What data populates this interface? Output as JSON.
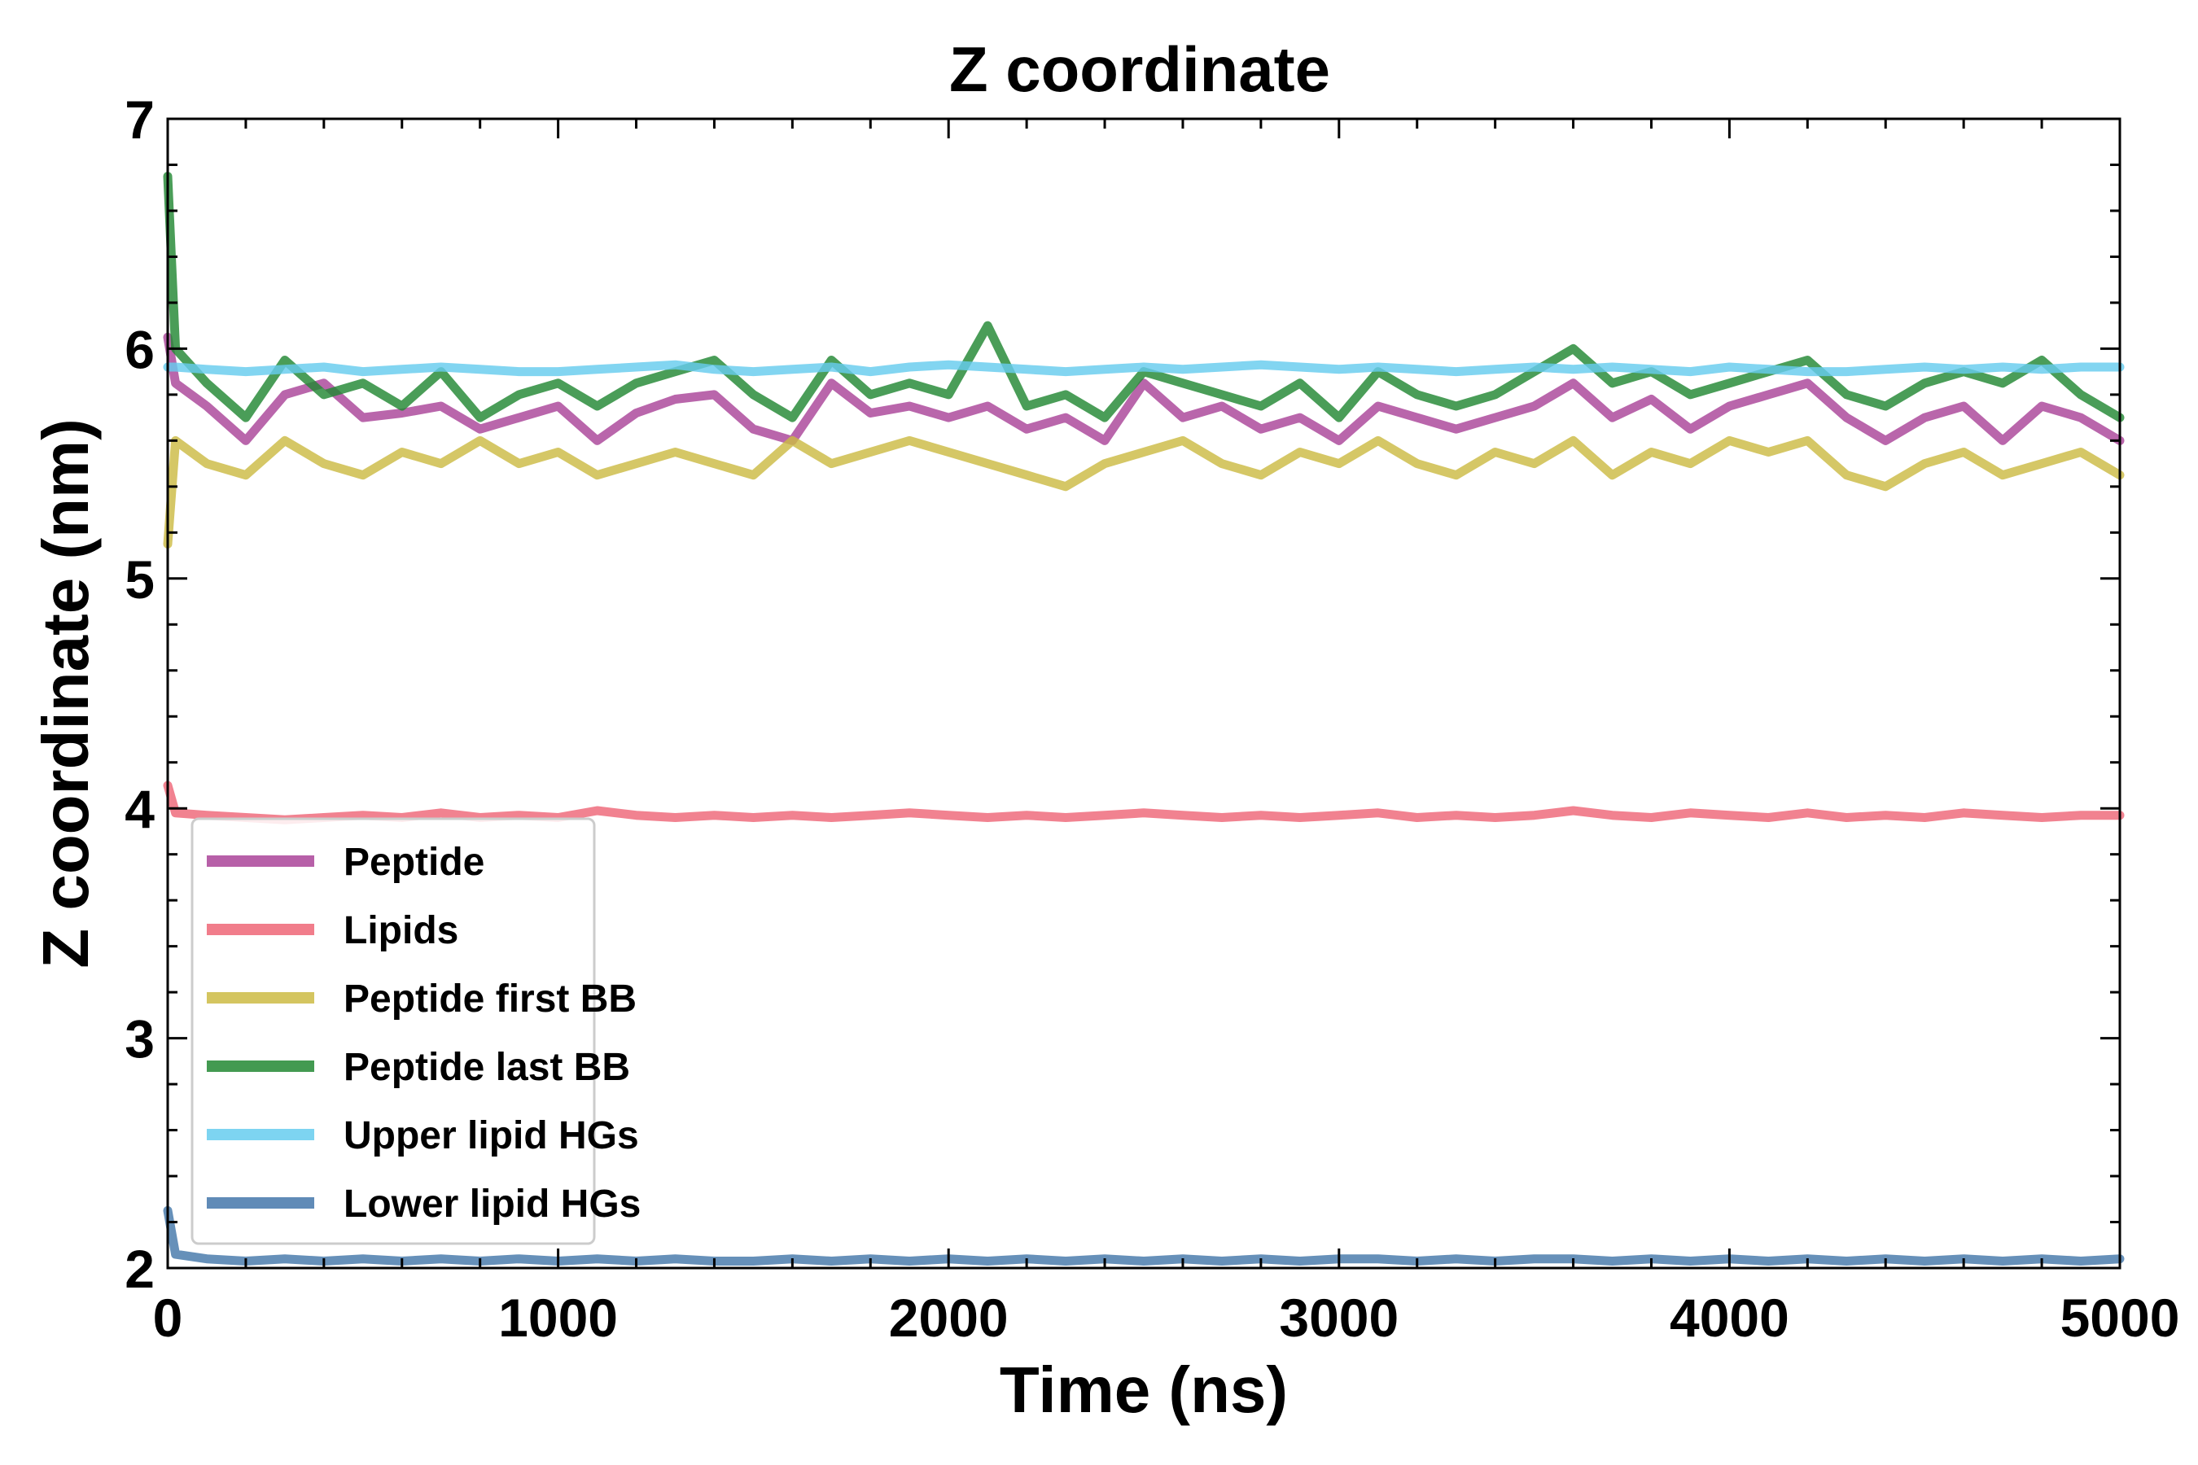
{
  "chart_data": {
    "type": "line",
    "title": "Z coordinate",
    "xlabel": "Time (ns)",
    "ylabel": "Z coordinate (nm)",
    "xlim": [
      0,
      5000
    ],
    "ylim": [
      2,
      7
    ],
    "x_ticks": [
      "0",
      "1000",
      "2000",
      "3000",
      "4000",
      "5000"
    ],
    "y_ticks": [
      "2",
      "3",
      "4",
      "5",
      "6",
      "7"
    ],
    "grid": false,
    "legend_position": "lower-left",
    "x": [
      0,
      20,
      100,
      200,
      300,
      400,
      500,
      600,
      700,
      800,
      900,
      1000,
      1100,
      1200,
      1300,
      1400,
      1500,
      1600,
      1700,
      1800,
      1900,
      2000,
      2100,
      2200,
      2300,
      2400,
      2500,
      2600,
      2700,
      2800,
      2900,
      3000,
      3100,
      3200,
      3300,
      3400,
      3500,
      3600,
      3700,
      3800,
      3900,
      4000,
      4100,
      4200,
      4300,
      4400,
      4500,
      4600,
      4700,
      4800,
      4900,
      5000
    ],
    "series": [
      {
        "name": "Peptide",
        "color": "#aa4499",
        "values": [
          6.05,
          5.85,
          5.75,
          5.6,
          5.8,
          5.85,
          5.7,
          5.72,
          5.75,
          5.65,
          5.7,
          5.75,
          5.6,
          5.72,
          5.78,
          5.8,
          5.65,
          5.6,
          5.85,
          5.72,
          5.75,
          5.7,
          5.75,
          5.65,
          5.7,
          5.6,
          5.85,
          5.7,
          5.75,
          5.65,
          5.7,
          5.6,
          5.75,
          5.7,
          5.65,
          5.7,
          5.75,
          5.85,
          5.7,
          5.78,
          5.65,
          5.75,
          5.8,
          5.85,
          5.7,
          5.6,
          5.7,
          5.75,
          5.6,
          5.75,
          5.7,
          5.6
        ]
      },
      {
        "name": "Lipids",
        "color": "#ee6677",
        "values": [
          4.1,
          3.98,
          3.97,
          3.96,
          3.95,
          3.96,
          3.97,
          3.96,
          3.98,
          3.96,
          3.97,
          3.96,
          3.99,
          3.97,
          3.96,
          3.97,
          3.96,
          3.97,
          3.96,
          3.97,
          3.98,
          3.97,
          3.96,
          3.97,
          3.96,
          3.97,
          3.98,
          3.97,
          3.96,
          3.97,
          3.96,
          3.97,
          3.98,
          3.96,
          3.97,
          3.96,
          3.97,
          3.99,
          3.97,
          3.96,
          3.98,
          3.97,
          3.96,
          3.98,
          3.96,
          3.97,
          3.96,
          3.98,
          3.97,
          3.96,
          3.97,
          3.97
        ]
      },
      {
        "name": "Peptide first BB",
        "color": "#ccbb44",
        "values": [
          5.15,
          5.6,
          5.5,
          5.45,
          5.6,
          5.5,
          5.45,
          5.55,
          5.5,
          5.6,
          5.5,
          5.55,
          5.45,
          5.5,
          5.55,
          5.5,
          5.45,
          5.6,
          5.5,
          5.55,
          5.6,
          5.55,
          5.5,
          5.45,
          5.4,
          5.5,
          5.55,
          5.6,
          5.5,
          5.45,
          5.55,
          5.5,
          5.6,
          5.5,
          5.45,
          5.55,
          5.5,
          5.6,
          5.45,
          5.55,
          5.5,
          5.6,
          5.55,
          5.6,
          5.45,
          5.4,
          5.5,
          5.55,
          5.45,
          5.5,
          5.55,
          5.45
        ]
      },
      {
        "name": "Peptide last BB",
        "color": "#228833",
        "values": [
          6.75,
          6.0,
          5.85,
          5.7,
          5.95,
          5.8,
          5.85,
          5.75,
          5.9,
          5.7,
          5.8,
          5.85,
          5.75,
          5.85,
          5.9,
          5.95,
          5.8,
          5.7,
          5.95,
          5.8,
          5.85,
          5.8,
          6.1,
          5.75,
          5.8,
          5.7,
          5.9,
          5.85,
          5.8,
          5.75,
          5.85,
          5.7,
          5.9,
          5.8,
          5.75,
          5.8,
          5.9,
          6.0,
          5.85,
          5.9,
          5.8,
          5.85,
          5.9,
          5.95,
          5.8,
          5.75,
          5.85,
          5.9,
          5.85,
          5.95,
          5.8,
          5.7
        ]
      },
      {
        "name": "Upper lipid HGs",
        "color": "#66ccee",
        "values": [
          5.92,
          5.92,
          5.91,
          5.9,
          5.91,
          5.92,
          5.9,
          5.91,
          5.92,
          5.91,
          5.9,
          5.9,
          5.91,
          5.92,
          5.93,
          5.91,
          5.9,
          5.91,
          5.92,
          5.9,
          5.92,
          5.93,
          5.92,
          5.91,
          5.9,
          5.91,
          5.92,
          5.91,
          5.92,
          5.93,
          5.92,
          5.91,
          5.92,
          5.91,
          5.9,
          5.91,
          5.92,
          5.91,
          5.92,
          5.91,
          5.9,
          5.92,
          5.91,
          5.9,
          5.9,
          5.91,
          5.92,
          5.91,
          5.92,
          5.91,
          5.92,
          5.92
        ]
      },
      {
        "name": "Lower lipid HGs",
        "color": "#4477aa",
        "values": [
          2.25,
          2.06,
          2.04,
          2.03,
          2.04,
          2.03,
          2.04,
          2.03,
          2.04,
          2.03,
          2.04,
          2.03,
          2.04,
          2.03,
          2.04,
          2.03,
          2.03,
          2.04,
          2.03,
          2.04,
          2.03,
          2.04,
          2.03,
          2.04,
          2.03,
          2.04,
          2.03,
          2.04,
          2.03,
          2.04,
          2.03,
          2.04,
          2.04,
          2.03,
          2.04,
          2.03,
          2.04,
          2.04,
          2.03,
          2.04,
          2.03,
          2.04,
          2.03,
          2.04,
          2.03,
          2.04,
          2.03,
          2.04,
          2.03,
          2.04,
          2.03,
          2.04
        ]
      }
    ]
  }
}
